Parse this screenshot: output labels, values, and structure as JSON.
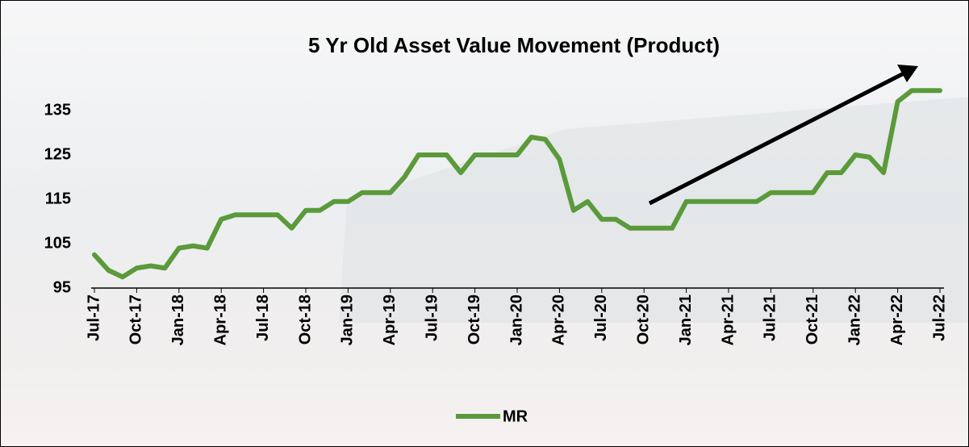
{
  "chart_data": {
    "type": "line",
    "title": "5 Yr Old Asset Value Movement (Product)",
    "categories": [
      "Jul-17",
      null,
      null,
      "Oct-17",
      null,
      null,
      "Jan-18",
      null,
      null,
      "Apr-18",
      null,
      null,
      "Jul-18",
      null,
      null,
      "Oct-18",
      null,
      null,
      "Jan-19",
      null,
      null,
      "Apr-19",
      null,
      null,
      "Jul-19",
      null,
      null,
      "Oct-19",
      null,
      null,
      "Jan-20",
      null,
      null,
      "Apr-20",
      null,
      null,
      "Jul-20",
      null,
      null,
      "Oct-20",
      null,
      null,
      "Jan-21",
      null,
      null,
      "Apr-21",
      null,
      null,
      "Jul-21",
      null,
      null,
      "Oct-21",
      null,
      null,
      "Jan-22",
      null,
      null,
      "Apr-22",
      null,
      null,
      "Jul-22"
    ],
    "series": [
      {
        "name": "MR",
        "color": "#5a9a3a",
        "values": [
          102.5,
          99,
          97.5,
          99.5,
          100,
          99.5,
          104,
          104.5,
          104,
          110.5,
          111.5,
          111.5,
          111.5,
          111.5,
          108.5,
          112.5,
          112.5,
          114.5,
          114.5,
          116.5,
          116.5,
          116.5,
          120,
          125,
          125,
          125,
          121,
          125,
          125,
          125,
          125,
          129,
          128.5,
          124,
          112.5,
          114.5,
          110.5,
          110.5,
          108.5,
          108.5,
          108.5,
          108.5,
          114.5,
          114.5,
          114.5,
          114.5,
          114.5,
          114.5,
          116.5,
          116.5,
          116.5,
          116.5,
          121,
          121,
          125,
          124.5,
          121,
          137,
          139.5,
          139.5,
          139.5
        ]
      }
    ],
    "ylim": [
      95,
      141
    ],
    "yticks": [
      95,
      105,
      115,
      125,
      135
    ],
    "legend": "bottom"
  }
}
